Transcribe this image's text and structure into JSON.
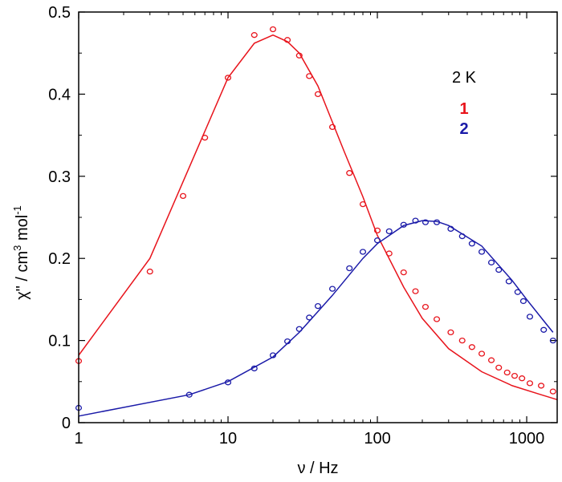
{
  "chart_data": {
    "type": "scatter",
    "x_scale": "log",
    "xlim": [
      1,
      1600
    ],
    "ylim": [
      0,
      0.5
    ],
    "xlabel": "ν / Hz",
    "ylabel": {
      "prefix": "χ\" / cm",
      "sup1": "3",
      "mid": " mol",
      "sup2": "-1"
    },
    "x_ticks": [
      {
        "value": 1,
        "label": "1"
      },
      {
        "value": 10,
        "label": "10"
      },
      {
        "value": 100,
        "label": "100"
      },
      {
        "value": 1000,
        "label": "1000"
      }
    ],
    "y_ticks": [
      {
        "value": 0,
        "label": "0"
      },
      {
        "value": 0.1,
        "label": "0.1"
      },
      {
        "value": 0.2,
        "label": "0.2"
      },
      {
        "value": 0.3,
        "label": "0.3"
      },
      {
        "value": 0.4,
        "label": "0.4"
      },
      {
        "value": 0.5,
        "label": "0.5"
      }
    ],
    "annotation": "2 K",
    "series": [
      {
        "name": "1",
        "color": "#e8141c",
        "points": [
          [
            1,
            0.075
          ],
          [
            3,
            0.184
          ],
          [
            5,
            0.276
          ],
          [
            7,
            0.347
          ],
          [
            10,
            0.42
          ],
          [
            15,
            0.472
          ],
          [
            20,
            0.479
          ],
          [
            25,
            0.466
          ],
          [
            30,
            0.447
          ],
          [
            35,
            0.422
          ],
          [
            40,
            0.4
          ],
          [
            50,
            0.36
          ],
          [
            65,
            0.304
          ],
          [
            80,
            0.266
          ],
          [
            100,
            0.234
          ],
          [
            120,
            0.206
          ],
          [
            150,
            0.183
          ],
          [
            180,
            0.16
          ],
          [
            210,
            0.141
          ],
          [
            250,
            0.126
          ],
          [
            310,
            0.11
          ],
          [
            370,
            0.1
          ],
          [
            430,
            0.092
          ],
          [
            500,
            0.084
          ],
          [
            580,
            0.076
          ],
          [
            650,
            0.067
          ],
          [
            740,
            0.061
          ],
          [
            830,
            0.057
          ],
          [
            930,
            0.054
          ],
          [
            1050,
            0.048
          ],
          [
            1250,
            0.045
          ],
          [
            1500,
            0.038
          ]
        ],
        "fit": [
          [
            1,
            0.082
          ],
          [
            3,
            0.2
          ],
          [
            10,
            0.42
          ],
          [
            15,
            0.462
          ],
          [
            20,
            0.472
          ],
          [
            25,
            0.464
          ],
          [
            30,
            0.45
          ],
          [
            40,
            0.41
          ],
          [
            60,
            0.33
          ],
          [
            80,
            0.275
          ],
          [
            100,
            0.228
          ],
          [
            150,
            0.165
          ],
          [
            200,
            0.127
          ],
          [
            300,
            0.09
          ],
          [
            500,
            0.062
          ],
          [
            800,
            0.045
          ],
          [
            1200,
            0.035
          ],
          [
            1600,
            0.028
          ]
        ]
      },
      {
        "name": "2",
        "color": "#1a1aa8",
        "points": [
          [
            1,
            0.018
          ],
          [
            5.5,
            0.034
          ],
          [
            10,
            0.049
          ],
          [
            15,
            0.066
          ],
          [
            20,
            0.082
          ],
          [
            25,
            0.099
          ],
          [
            30,
            0.114
          ],
          [
            35,
            0.128
          ],
          [
            40,
            0.142
          ],
          [
            50,
            0.163
          ],
          [
            65,
            0.188
          ],
          [
            80,
            0.208
          ],
          [
            100,
            0.222
          ],
          [
            120,
            0.233
          ],
          [
            150,
            0.241
          ],
          [
            180,
            0.246
          ],
          [
            210,
            0.244
          ],
          [
            250,
            0.244
          ],
          [
            310,
            0.236
          ],
          [
            370,
            0.227
          ],
          [
            430,
            0.218
          ],
          [
            500,
            0.208
          ],
          [
            580,
            0.195
          ],
          [
            650,
            0.186
          ],
          [
            760,
            0.172
          ],
          [
            870,
            0.159
          ],
          [
            950,
            0.148
          ],
          [
            1050,
            0.129
          ],
          [
            1300,
            0.113
          ],
          [
            1500,
            0.1
          ]
        ],
        "fit": [
          [
            1,
            0.008
          ],
          [
            5.5,
            0.034
          ],
          [
            10,
            0.05
          ],
          [
            20,
            0.08
          ],
          [
            30,
            0.11
          ],
          [
            50,
            0.155
          ],
          [
            80,
            0.2
          ],
          [
            100,
            0.218
          ],
          [
            150,
            0.24
          ],
          [
            200,
            0.246
          ],
          [
            250,
            0.245
          ],
          [
            300,
            0.24
          ],
          [
            500,
            0.215
          ],
          [
            800,
            0.173
          ],
          [
            1000,
            0.15
          ],
          [
            1300,
            0.124
          ],
          [
            1500,
            0.11
          ]
        ]
      }
    ]
  }
}
